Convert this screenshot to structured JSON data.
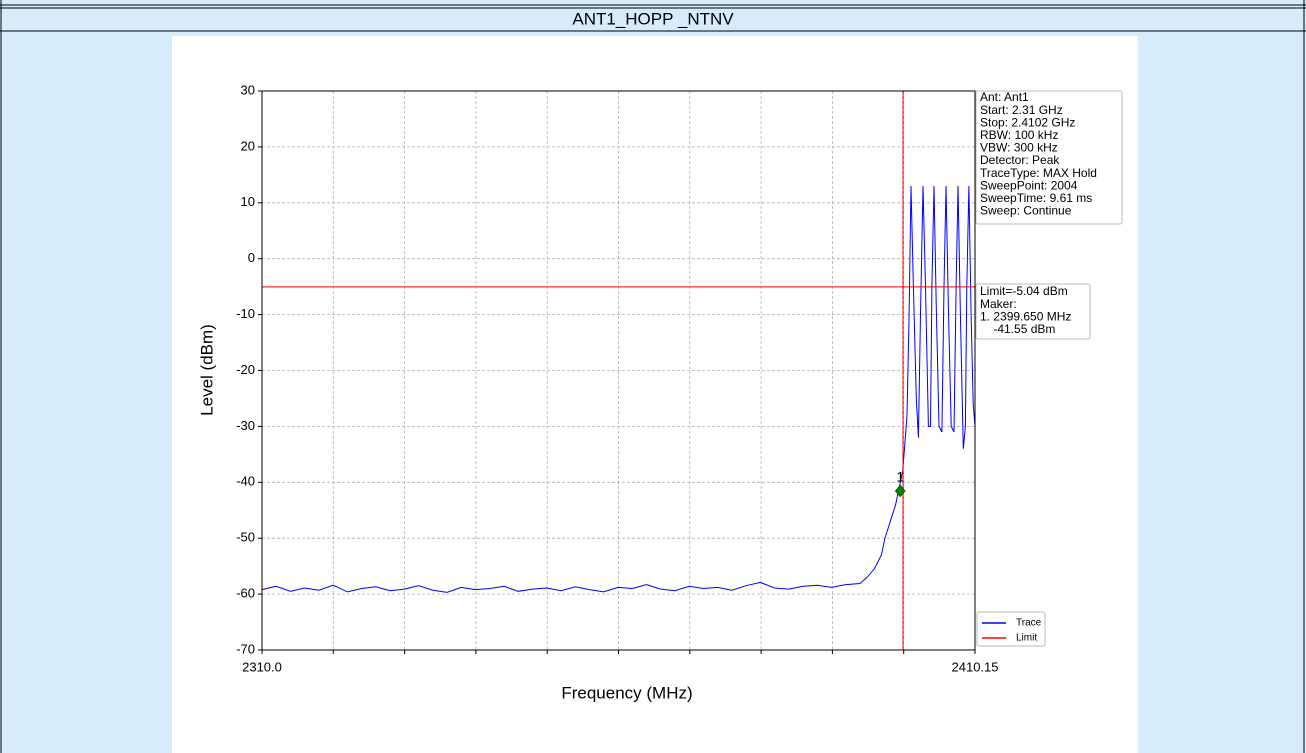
{
  "header": {
    "title": "ANT1_HOPP _NTNV"
  },
  "chart_data": {
    "type": "line",
    "xlabel": "Frequency (MHz)",
    "ylabel": "Level (dBm)",
    "xlim": [
      2310,
      2410.15
    ],
    "ylim": [
      -70,
      30
    ],
    "xticks": [
      {
        "value": 2310,
        "label": "2310.0"
      },
      2410.15
    ],
    "xminorticks": [
      2320.015,
      2330.03,
      2340.045,
      2350.06,
      2360.075,
      2370.09,
      2380.105,
      2390.12,
      2400.135
    ],
    "yticks": [
      -70,
      -60,
      -50,
      -40,
      -30,
      -20,
      -10,
      0,
      10,
      20,
      30
    ],
    "grid": true,
    "legend": "lower right",
    "series": [
      {
        "name": "Trace",
        "color": "#0000ff",
        "x": [
          2310,
          2312,
          2314,
          2316,
          2318,
          2320,
          2322,
          2324,
          2326,
          2328,
          2330,
          2332,
          2334,
          2336,
          2338,
          2340,
          2342,
          2344,
          2346,
          2348,
          2350,
          2352,
          2354,
          2356,
          2358,
          2360,
          2362,
          2364,
          2366,
          2368,
          2370,
          2372,
          2374,
          2376,
          2378,
          2380,
          2382,
          2384,
          2386,
          2388,
          2390,
          2392,
          2394,
          2395,
          2396,
          2397,
          2397.5,
          2398,
          2398.5,
          2399,
          2399.5,
          2400,
          2400.3,
          2400.6,
          2400.9,
          2401.16,
          2401.5,
          2401.9,
          2402.2,
          2402.5,
          2402.84,
          2403.2,
          2403.6,
          2403.9,
          2404.1,
          2404.39,
          2404.7,
          2405.1,
          2405.5,
          2405.8,
          2406.07,
          2406.4,
          2406.8,
          2407.2,
          2407.5,
          2407.76,
          2408.1,
          2408.5,
          2408.8,
          2409.0,
          2409.3,
          2409.6,
          2409.9,
          2410.15
        ],
        "values": [
          -59.2,
          -58.6,
          -59.5,
          -58.9,
          -59.3,
          -58.4,
          -59.6,
          -59.0,
          -58.7,
          -59.4,
          -59.1,
          -58.5,
          -59.3,
          -59.7,
          -58.8,
          -59.2,
          -59.0,
          -58.6,
          -59.5,
          -59.1,
          -58.9,
          -59.4,
          -58.7,
          -59.2,
          -59.6,
          -58.8,
          -59.0,
          -58.3,
          -59.1,
          -59.4,
          -58.6,
          -59.0,
          -58.8,
          -59.3,
          -58.5,
          -57.9,
          -58.9,
          -59.1,
          -58.6,
          -58.4,
          -58.8,
          -58.3,
          -58.1,
          -57,
          -55.5,
          -53,
          -50,
          -48,
          -46,
          -44,
          -41,
          -38,
          -33,
          -28,
          -10,
          13,
          -5,
          -25,
          -32,
          -10,
          13,
          -5,
          -30,
          -30,
          -5,
          13,
          -8,
          -30,
          -31,
          -5,
          13,
          -8,
          -30,
          -31,
          -5,
          13,
          -10,
          -34,
          -30,
          -5,
          13,
          -10,
          -26,
          -30
        ]
      },
      {
        "name": "Limit",
        "color": "#ff0000",
        "hline": -5.04,
        "vline": 2400.04
      }
    ],
    "marker": {
      "label": "1",
      "x": 2399.65,
      "y": -41.55,
      "color": "#008000"
    },
    "info": [
      "Ant: Ant1",
      "Start: 2.31 GHz",
      "Stop: 2.4102 GHz",
      "RBW: 100 kHz",
      "VBW: 300 kHz",
      "Detector: Peak",
      "TraceType: MAX Hold",
      "SweepPoint: 2004",
      "SweepTime: 9.61 ms",
      "Sweep: Continue"
    ],
    "limit_box": [
      "Limit=-5.04 dBm",
      "Maker:",
      "1. 2399.650 MHz",
      "    -41.55 dBm"
    ]
  }
}
